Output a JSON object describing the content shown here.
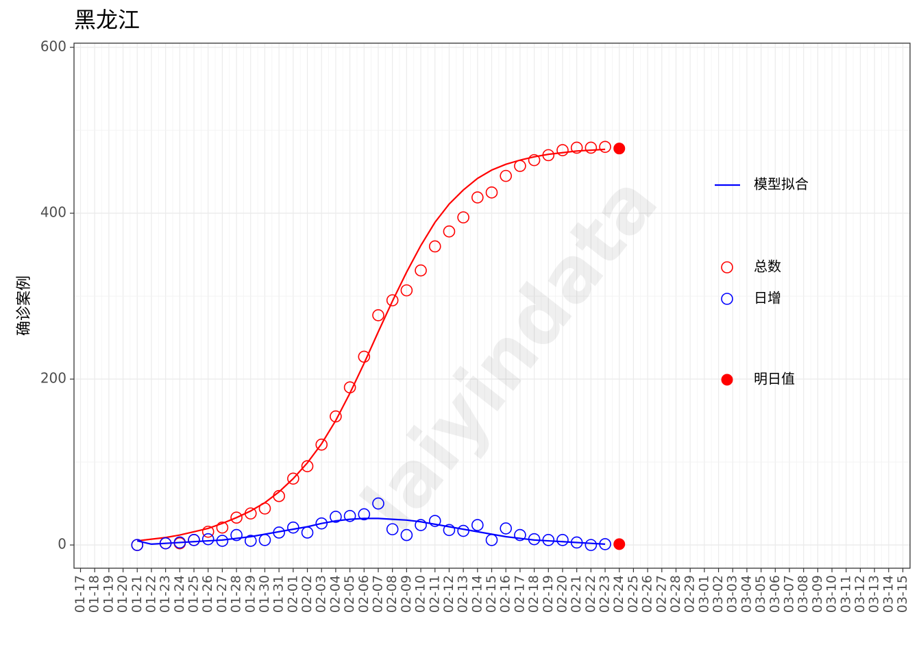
{
  "chart_data": {
    "type": "line",
    "title": "黑龙江",
    "xlabel": "",
    "ylabel": "确诊案例",
    "watermark": "laiyindata",
    "ylim": [
      -28,
      605
    ],
    "yticks": [
      0,
      200,
      400,
      600
    ],
    "x_dates": [
      "01-17",
      "01-18",
      "01-19",
      "01-20",
      "01-21",
      "01-22",
      "01-23",
      "01-24",
      "01-25",
      "01-26",
      "01-27",
      "01-28",
      "01-29",
      "01-30",
      "01-31",
      "02-01",
      "02-02",
      "02-03",
      "02-04",
      "02-05",
      "02-06",
      "02-07",
      "02-08",
      "02-09",
      "02-10",
      "02-11",
      "02-12",
      "02-13",
      "02-14",
      "02-15",
      "02-16",
      "02-17",
      "02-18",
      "02-19",
      "02-20",
      "02-21",
      "02-22",
      "02-23",
      "02-24",
      "02-25",
      "02-26",
      "02-27",
      "02-28",
      "02-29",
      "03-01",
      "03-02",
      "03-03",
      "03-04",
      "03-05",
      "03-06",
      "03-07",
      "03-08",
      "03-09",
      "03-10",
      "03-11",
      "03-12",
      "03-13",
      "03-14",
      "03-15"
    ],
    "series": [
      {
        "name": "总数",
        "kind": "points",
        "color": "#ff0000",
        "x": [
          "01-21",
          "01-23",
          "01-24",
          "01-25",
          "01-26",
          "01-27",
          "01-28",
          "01-29",
          "01-30",
          "01-31",
          "02-01",
          "02-02",
          "02-03",
          "02-04",
          "02-05",
          "02-06",
          "02-07",
          "02-08",
          "02-09",
          "02-10",
          "02-11",
          "02-12",
          "02-13",
          "02-14",
          "02-15",
          "02-16",
          "02-17",
          "02-18",
          "02-19",
          "02-20",
          "02-21",
          "02-22",
          "02-23"
        ],
        "values": [
          0,
          2,
          2,
          6,
          16,
          21,
          33,
          38,
          44,
          59,
          80,
          95,
          121,
          155,
          190,
          227,
          277,
          295,
          307,
          331,
          360,
          378,
          395,
          419,
          425,
          445,
          457,
          464,
          470,
          476,
          479,
          479,
          480
        ]
      },
      {
        "name": "日增",
        "kind": "points",
        "color": "#0000ff",
        "x": [
          "01-21",
          "01-23",
          "01-24",
          "01-25",
          "01-26",
          "01-27",
          "01-28",
          "01-29",
          "01-30",
          "01-31",
          "02-01",
          "02-02",
          "02-03",
          "02-04",
          "02-05",
          "02-06",
          "02-07",
          "02-08",
          "02-09",
          "02-10",
          "02-11",
          "02-12",
          "02-13",
          "02-14",
          "02-15",
          "02-16",
          "02-17",
          "02-18",
          "02-19",
          "02-20",
          "02-21",
          "02-22",
          "02-23"
        ],
        "values": [
          0,
          2,
          3,
          6,
          7,
          5,
          12,
          5,
          6,
          15,
          21,
          15,
          26,
          34,
          35,
          37,
          50,
          19,
          12,
          24,
          29,
          18,
          17,
          24,
          6,
          20,
          12,
          7,
          6,
          6,
          3,
          0,
          1
        ]
      },
      {
        "name": "模型拟合",
        "kind": "line",
        "color": "#ff0000",
        "x": [
          "01-21",
          "01-22",
          "01-23",
          "01-24",
          "01-25",
          "01-26",
          "01-27",
          "01-28",
          "01-29",
          "01-30",
          "01-31",
          "02-01",
          "02-02",
          "02-03",
          "02-04",
          "02-05",
          "02-06",
          "02-07",
          "02-08",
          "02-09",
          "02-10",
          "02-11",
          "02-12",
          "02-13",
          "02-14",
          "02-15",
          "02-16",
          "02-17",
          "02-18",
          "02-19",
          "02-20",
          "02-21",
          "02-22",
          "02-23"
        ],
        "values": [
          5,
          7,
          9,
          12,
          16,
          20,
          26,
          33,
          41,
          51,
          64,
          80,
          99,
          122,
          150,
          183,
          219,
          257,
          294,
          329,
          361,
          389,
          411,
          428,
          442,
          452,
          459,
          464,
          468,
          471,
          473,
          475,
          476,
          477
        ]
      },
      {
        "name": "模型拟合",
        "kind": "line",
        "color": "#0000ff",
        "x": [
          "01-21",
          "01-22",
          "01-23",
          "01-24",
          "01-25",
          "01-26",
          "01-27",
          "01-28",
          "01-29",
          "01-30",
          "01-31",
          "02-01",
          "02-02",
          "02-03",
          "02-04",
          "02-05",
          "02-06",
          "02-07",
          "02-08",
          "02-09",
          "02-10",
          "02-11",
          "02-12",
          "02-13",
          "02-14",
          "02-15",
          "02-16",
          "02-17",
          "02-18",
          "02-19",
          "02-20",
          "02-21",
          "02-22",
          "02-23"
        ],
        "values": [
          5,
          1,
          2,
          3,
          4,
          5,
          6,
          8,
          10,
          13,
          16,
          19,
          22,
          26,
          29,
          31,
          32,
          32,
          31,
          30,
          28,
          25,
          22,
          19,
          16,
          13,
          10,
          8,
          6,
          5,
          4,
          3,
          2,
          1
        ]
      },
      {
        "name": "明日值",
        "kind": "predict",
        "color": "#ff0000",
        "x": [
          "02-24",
          "02-24"
        ],
        "values": [
          478,
          1
        ]
      }
    ],
    "legend": {
      "position": "right",
      "groups": [
        [
          {
            "label": "模型拟合",
            "symbol": "line",
            "color": "#0000ff"
          }
        ],
        [
          {
            "label": "总数",
            "symbol": "circle-open",
            "color": "#ff0000"
          },
          {
            "label": "日增",
            "symbol": "circle-open",
            "color": "#0000ff"
          }
        ],
        [
          {
            "label": "明日值",
            "symbol": "circle-filled",
            "color": "#ff0000"
          }
        ]
      ]
    }
  }
}
